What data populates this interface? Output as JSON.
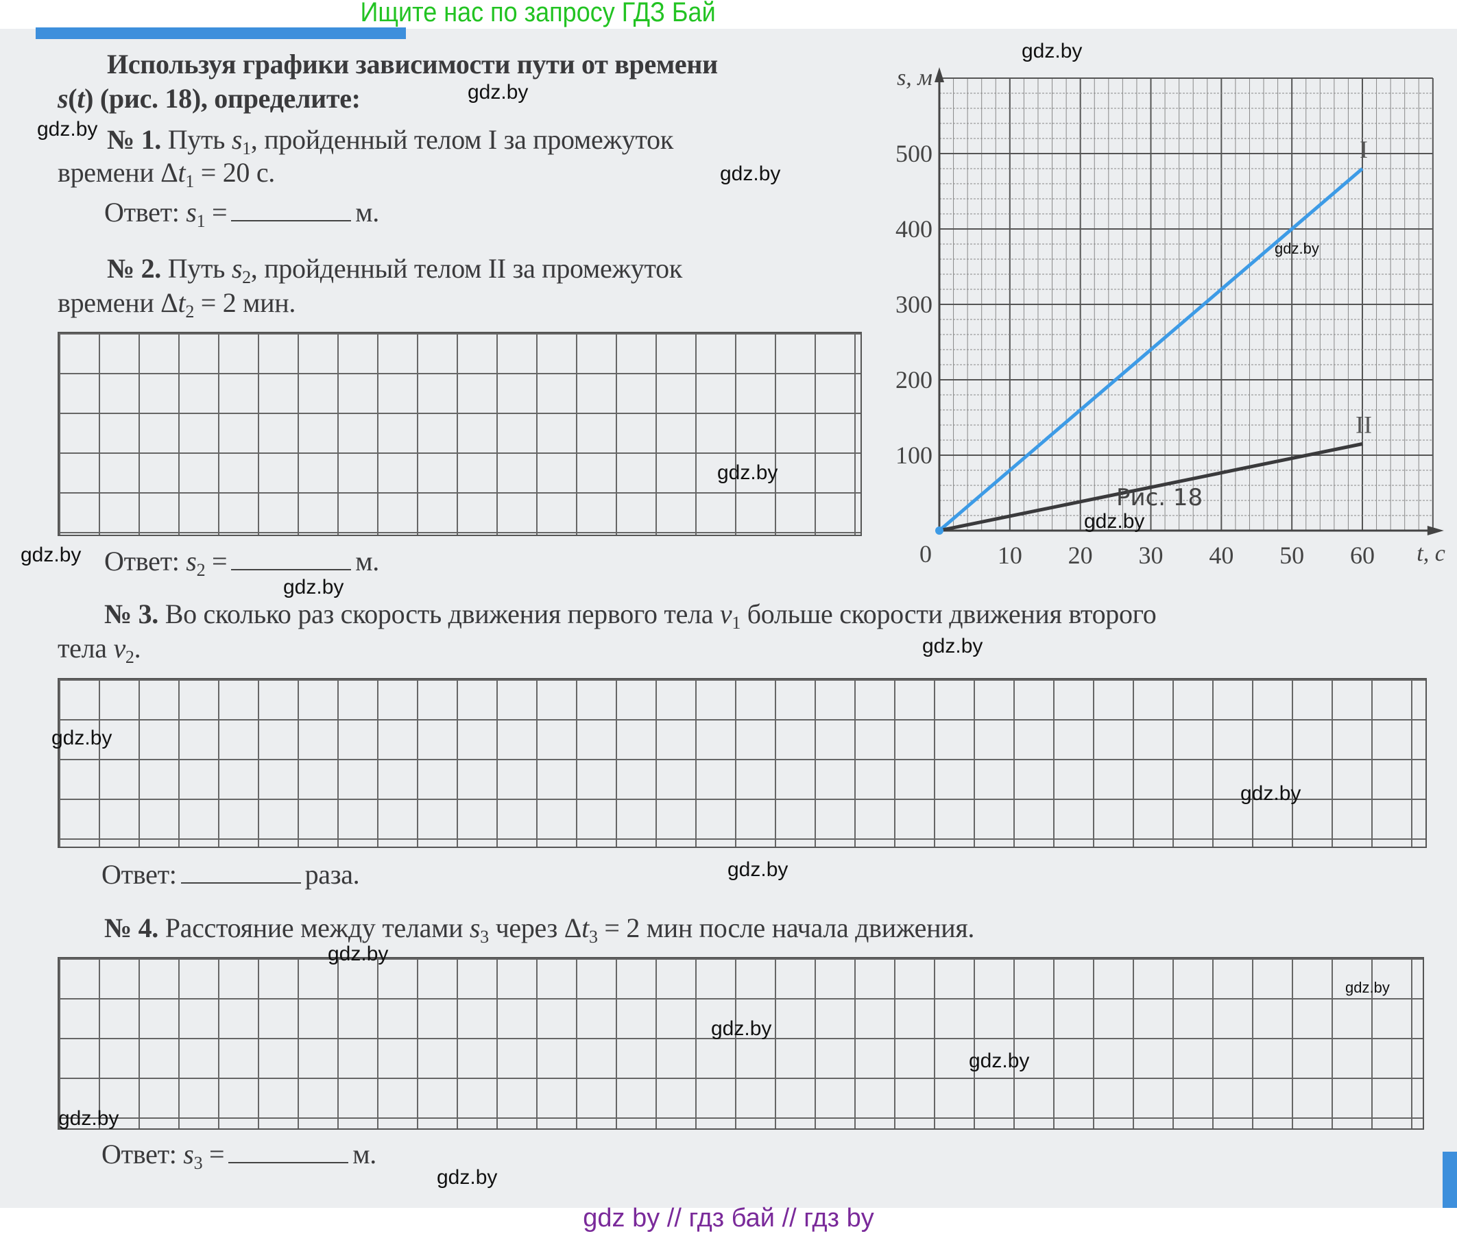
{
  "banner": "Ищите нас по запросу ГДЗ Бай",
  "footer": "gdz by  //  гдз бай  //  гдз by",
  "colors": {
    "accent": "#3d8fdc",
    "line_I": "#3d9be6",
    "line_II": "#3a3a3c",
    "banner": "#22c322",
    "footer": "#7a2a9a"
  },
  "lines": [
    {
      "id": "intro-1",
      "parts": [
        {
          "t": "Используя графики зависимости пути от времени",
          "b": true
        }
      ]
    },
    {
      "id": "intro-2",
      "parts": [
        {
          "t": "s",
          "b": true,
          "i": true
        },
        {
          "t": "(",
          "b": true
        },
        {
          "t": "t",
          "b": true,
          "i": true
        },
        {
          "t": ") (рис. 18), определите:",
          "b": true
        }
      ]
    },
    {
      "id": "task1-1",
      "parts": [
        {
          "t": "№ 1.",
          "b": true
        },
        {
          "t": " Путь "
        },
        {
          "t": "s",
          "i": true
        },
        {
          "t": "1",
          "sub": true
        },
        {
          "t": ", пройденный телом I за промежуток"
        }
      ]
    },
    {
      "id": "task1-2",
      "parts": [
        {
          "t": "времени Δ"
        },
        {
          "t": "t",
          "i": true
        },
        {
          "t": "1",
          "sub": true
        },
        {
          "t": " = 20 с."
        }
      ]
    },
    {
      "id": "answer1",
      "parts": [
        {
          "t": "Ответ: "
        },
        {
          "t": "s",
          "i": true
        },
        {
          "t": "1",
          "sub": true
        },
        {
          "t": " ="
        },
        {
          "blank": true
        },
        {
          "t": "м."
        }
      ]
    },
    {
      "id": "task2-1",
      "parts": [
        {
          "t": "№ 2.",
          "b": true
        },
        {
          "t": " Путь "
        },
        {
          "t": "s",
          "i": true
        },
        {
          "t": "2",
          "sub": true
        },
        {
          "t": ", пройденный телом II за промежуток"
        }
      ]
    },
    {
      "id": "task2-2",
      "parts": [
        {
          "t": "времени Δ"
        },
        {
          "t": "t",
          "i": true
        },
        {
          "t": "2",
          "sub": true
        },
        {
          "t": " = 2 мин."
        }
      ]
    },
    {
      "id": "answer2",
      "parts": [
        {
          "t": "Ответ: "
        },
        {
          "t": "s",
          "i": true
        },
        {
          "t": "2",
          "sub": true
        },
        {
          "t": " ="
        },
        {
          "blank": true
        },
        {
          "t": "м."
        }
      ]
    },
    {
      "id": "task3-1",
      "parts": [
        {
          "t": "№ 3.",
          "b": true
        },
        {
          "t": " Во сколько раз скорость движения первого тела "
        },
        {
          "t": "v",
          "i": true
        },
        {
          "t": "1",
          "sub": true
        },
        {
          "t": " больше скорости движения второго"
        }
      ]
    },
    {
      "id": "task3-2",
      "parts": [
        {
          "t": "тела "
        },
        {
          "t": "v",
          "i": true
        },
        {
          "t": "2",
          "sub": true
        },
        {
          "t": "."
        }
      ]
    },
    {
      "id": "answer3",
      "parts": [
        {
          "t": "Ответ:"
        },
        {
          "blank": true
        },
        {
          "t": "раза."
        }
      ]
    },
    {
      "id": "task4-1",
      "parts": [
        {
          "t": "№ 4.",
          "b": true
        },
        {
          "t": " Расстояние между телами "
        },
        {
          "t": "s",
          "i": true
        },
        {
          "t": "3",
          "sub": true
        },
        {
          "t": " через Δ"
        },
        {
          "t": "t",
          "i": true
        },
        {
          "t": "3",
          "sub": true
        },
        {
          "t": " = 2 мин после начала движения."
        }
      ]
    },
    {
      "id": "answer4",
      "parts": [
        {
          "t": "Ответ: "
        },
        {
          "t": "s",
          "i": true
        },
        {
          "t": "3",
          "sub": true
        },
        {
          "t": " ="
        },
        {
          "blank": true
        },
        {
          "t": "м."
        }
      ]
    }
  ],
  "watermark": "gdz.by",
  "figure_caption": "Рис. 18",
  "chart_data": {
    "type": "line",
    "xlabel": "t, с",
    "ylabel": "s, м",
    "origin_label": "0",
    "xlim": [
      0,
      70
    ],
    "ylim": [
      0,
      600
    ],
    "xticks": [
      "10",
      "20",
      "30",
      "40",
      "50",
      "60"
    ],
    "yticks": [
      "100",
      "200",
      "300",
      "400",
      "500"
    ],
    "grid": true,
    "series": [
      {
        "name": "I",
        "x": [
          0,
          60
        ],
        "y": [
          0,
          480
        ]
      },
      {
        "name": "II",
        "x": [
          0,
          60
        ],
        "y": [
          0,
          115
        ]
      }
    ]
  }
}
